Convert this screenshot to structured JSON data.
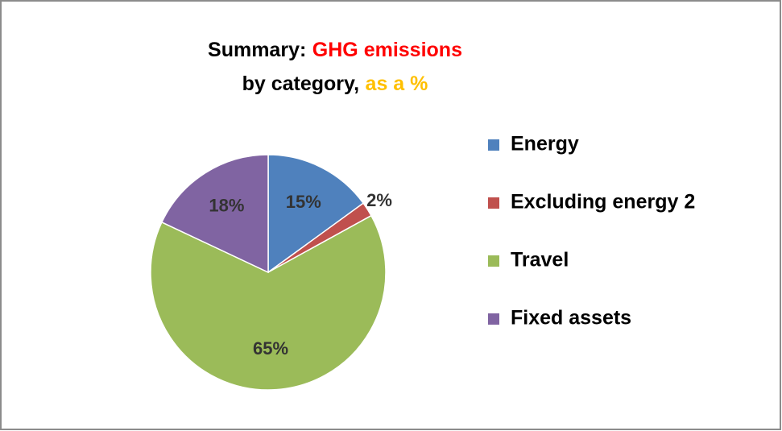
{
  "chart_data": {
    "type": "pie",
    "title": [
      [
        {
          "text": "Summary:",
          "color": "#000000"
        },
        {
          "text": "GHG emissions",
          "color": "#ff0000"
        }
      ],
      [
        {
          "text": "by category,",
          "color": "#000000"
        },
        {
          "text": "as a %",
          "color": "#ffc000"
        }
      ]
    ],
    "categories": [
      "Energy",
      "Excluding energy 2",
      "Travel",
      "Fixed assets"
    ],
    "values": [
      15,
      2,
      65,
      18
    ],
    "value_labels": [
      "15%",
      "2%",
      "65%",
      "18%"
    ],
    "colors": [
      "#4f81bd",
      "#c0504d",
      "#9bbb59",
      "#8064a2"
    ],
    "legend": "right"
  }
}
